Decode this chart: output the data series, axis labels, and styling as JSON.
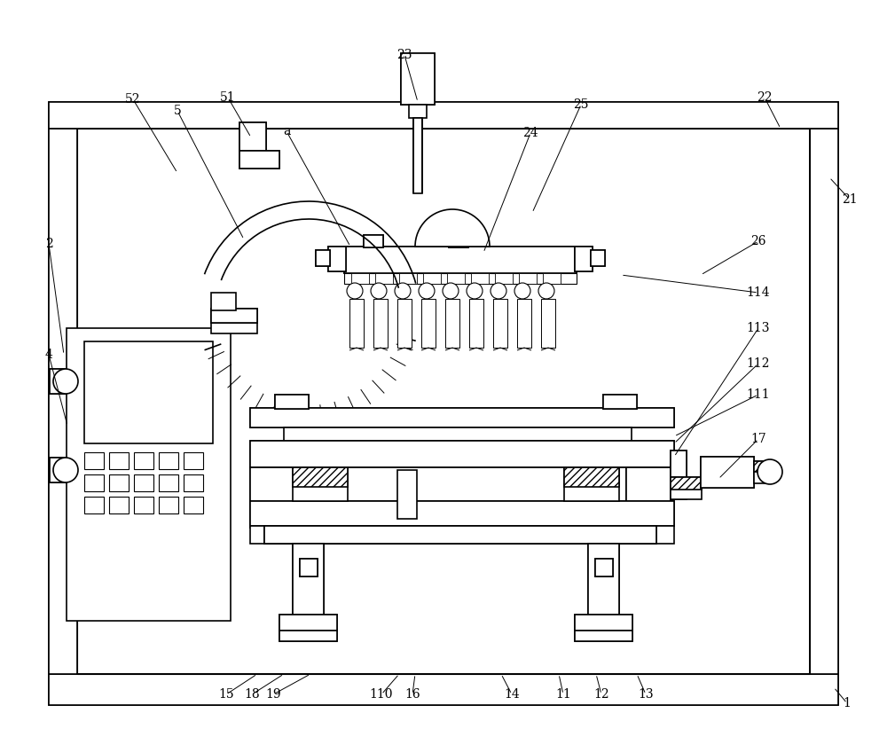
{
  "bg_color": "#ffffff",
  "lc": "#000000",
  "fig_width": 10.0,
  "fig_height": 8.22,
  "dpi": 100
}
